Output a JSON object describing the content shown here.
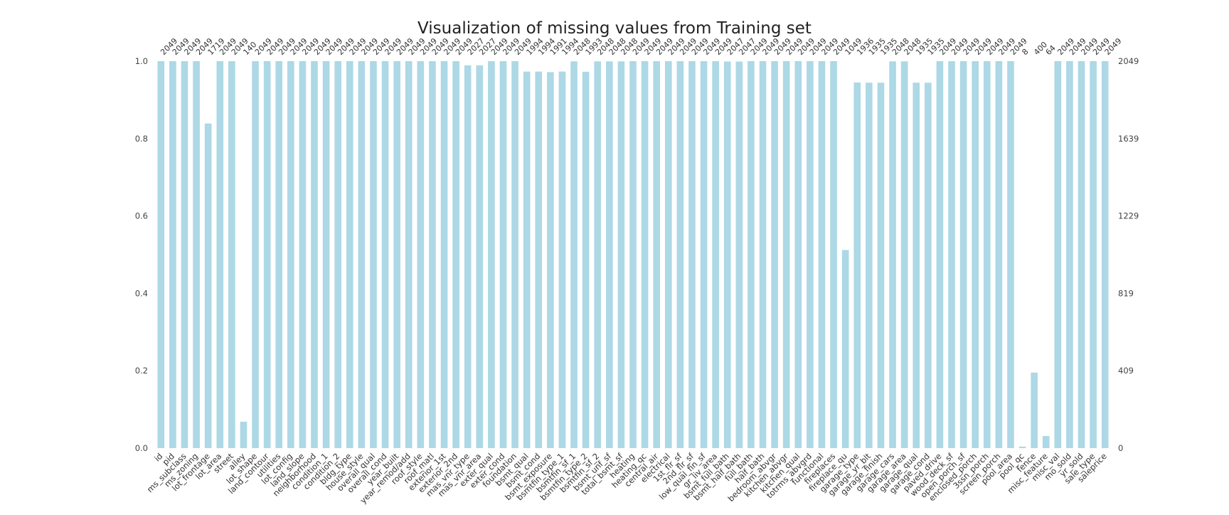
{
  "chart_data": {
    "type": "bar",
    "title": "Visualization of missing values from Training set",
    "xlabel": "",
    "ylabel": "",
    "ylim": [
      0,
      1.0
    ],
    "total_rows": 2049,
    "bar_color": "#add8e6",
    "grid": false,
    "left_ticks": [
      "0.0",
      "0.2",
      "0.4",
      "0.6",
      "0.8",
      "1.0"
    ],
    "left_tick_values": [
      0.0,
      0.2,
      0.4,
      0.6,
      0.8,
      1.0
    ],
    "right_ticks": [
      "0",
      "409",
      "819",
      "1229",
      "1639",
      "2049"
    ],
    "categories": [
      "id",
      "pid",
      "ms_subclass",
      "ms_zoning",
      "lot_frontage",
      "lot_area",
      "street",
      "alley",
      "lot_shape",
      "land_contour",
      "utilities",
      "lot_config",
      "land_slope",
      "neighborhood",
      "condition_1",
      "condition_2",
      "bldg_type",
      "house_style",
      "overall_qual",
      "overall_cond",
      "year_built",
      "year_remod/add",
      "roof_style",
      "roof_matl",
      "exterior_1st",
      "exterior_2nd",
      "mas_vnr_type",
      "mas_vnr_area",
      "exter_qual",
      "exter_cond",
      "foundation",
      "bsmt_qual",
      "bsmt_cond",
      "bsmt_exposure",
      "bsmtfin_type_1",
      "bsmtfin_sf_1",
      "bsmtfin_type_2",
      "bsmtfin_sf_2",
      "bsmt_unf_sf",
      "total_bsmt_sf",
      "heating",
      "heating_qc",
      "central_air",
      "electrical",
      "1st_flr_sf",
      "2nd_flr_sf",
      "low_qual_fin_sf",
      "gr_liv_area",
      "bsmt_full_bath",
      "bsmt_half_bath",
      "full_bath",
      "half_bath",
      "bedroom_abvgr",
      "kitchen_abvgr",
      "kitchen_qual",
      "totrms_abvgrd",
      "functional",
      "fireplaces",
      "fireplace_qu",
      "garage_type",
      "garage_yr_blt",
      "garage_finish",
      "garage_cars",
      "garage_area",
      "garage_qual",
      "garage_cond",
      "paved_drive",
      "wood_deck_sf",
      "open_porch_sf",
      "enclosed_porch",
      "3ssn_porch",
      "screen_porch",
      "pool_area",
      "pool_qc",
      "fence",
      "misc_feature",
      "misc_val",
      "mo_sold",
      "yr_sold",
      "sale_type",
      "saleprice"
    ],
    "values": [
      2049,
      2049,
      2049,
      2049,
      1719,
      2049,
      2049,
      140,
      2049,
      2049,
      2049,
      2049,
      2049,
      2049,
      2049,
      2049,
      2049,
      2049,
      2049,
      2049,
      2049,
      2049,
      2049,
      2049,
      2049,
      2049,
      2027,
      2027,
      2049,
      2049,
      2049,
      1994,
      1994,
      1991,
      1994,
      2048,
      1993,
      2048,
      2048,
      2048,
      2049,
      2049,
      2049,
      2049,
      2049,
      2049,
      2049,
      2049,
      2047,
      2047,
      2049,
      2049,
      2049,
      2049,
      2049,
      2049,
      2049,
      2049,
      1049,
      1936,
      1935,
      1935,
      2048,
      2048,
      1935,
      1935,
      2049,
      2049,
      2049,
      2049,
      2049,
      2049,
      2049,
      8,
      400,
      64,
      2049,
      2049,
      2049,
      2049,
      2049
    ]
  }
}
